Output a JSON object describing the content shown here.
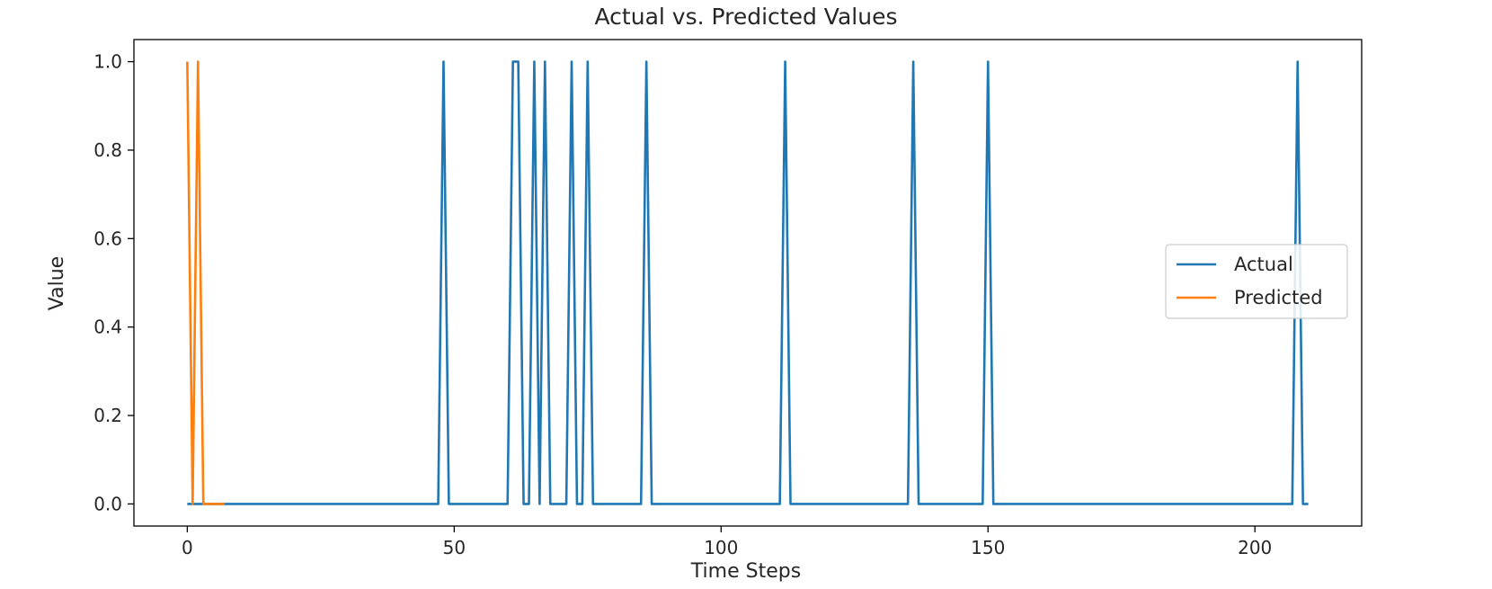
{
  "chart_data": {
    "type": "line",
    "title": "Actual vs. Predicted Values",
    "xlabel": "Time Steps",
    "ylabel": "Value",
    "xlim": [
      -10,
      220
    ],
    "ylim": [
      -0.05,
      1.05
    ],
    "xticks": [
      0,
      50,
      100,
      150,
      200
    ],
    "yticks": [
      0.0,
      0.2,
      0.4,
      0.6,
      0.8,
      1.0
    ],
    "xtick_labels": [
      "0",
      "50",
      "100",
      "150",
      "200"
    ],
    "ytick_labels": [
      "0.0",
      "0.2",
      "0.4",
      "0.6",
      "0.8",
      "1.0"
    ],
    "grid": false,
    "legend_position": "center-right",
    "series": [
      {
        "name": "Actual",
        "color": "#1f77b4",
        "x": [
          0,
          47,
          48,
          49,
          60,
          61,
          62,
          63,
          64,
          65,
          66,
          67,
          68,
          71,
          72,
          73,
          74,
          75,
          76,
          85,
          86,
          87,
          111,
          112,
          113,
          135,
          136,
          137,
          149,
          150,
          151,
          207,
          208,
          209,
          210
        ],
        "y": [
          0,
          0,
          1,
          0,
          0,
          1,
          1,
          0,
          0,
          1,
          0,
          1,
          0,
          0,
          1,
          0,
          0,
          1,
          0,
          0,
          1,
          0,
          0,
          1,
          0,
          0,
          1,
          0,
          0,
          1,
          0,
          0,
          1,
          0,
          0
        ]
      },
      {
        "name": "Predicted",
        "color": "#ff7f0e",
        "x": [
          0,
          1,
          2,
          3,
          4,
          5,
          6,
          7
        ],
        "y": [
          1,
          0,
          1,
          0,
          0,
          0,
          0,
          0
        ]
      }
    ]
  }
}
